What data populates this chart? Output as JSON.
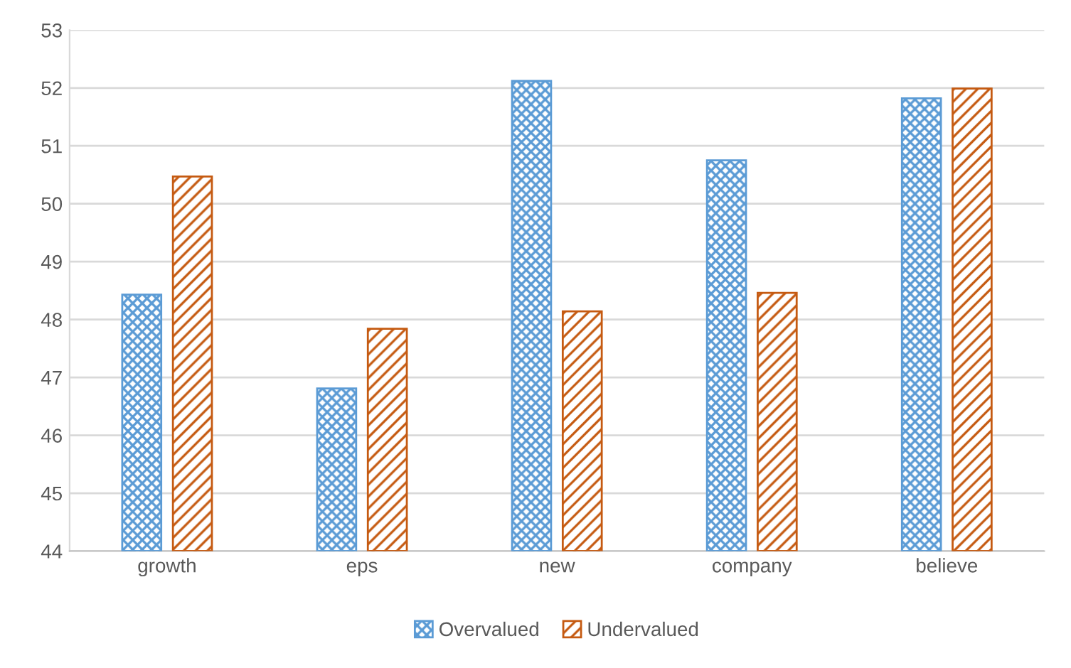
{
  "chart_data": {
    "type": "bar",
    "categories": [
      "growth",
      "eps",
      "new",
      "company",
      "believe"
    ],
    "series": [
      {
        "name": "Overvalued",
        "color": "#5b9bd5",
        "values": [
          48.43,
          46.81,
          52.12,
          50.75,
          51.82
        ]
      },
      {
        "name": "Undervalued",
        "color": "#c55a11",
        "values": [
          50.47,
          47.84,
          48.14,
          48.46,
          51.99
        ]
      }
    ],
    "ylim": [
      44,
      53
    ],
    "yticks": [
      44,
      45,
      46,
      47,
      48,
      49,
      50,
      51,
      52,
      53
    ],
    "grid": "y",
    "legend": "bottom"
  }
}
